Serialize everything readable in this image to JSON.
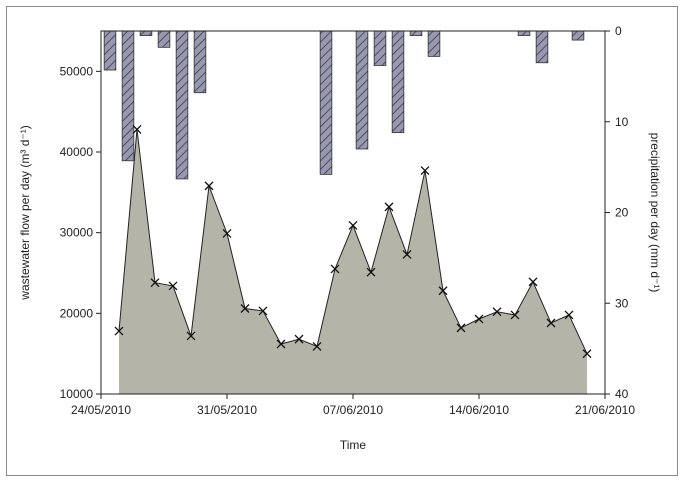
{
  "chart_data": {
    "type": "area",
    "xlabel": "Time",
    "ylabel_left": "wastewater flow per day (m³ d⁻¹)",
    "ylabel_right": "precipitation per day (mm d⁻¹)",
    "x_range": [
      "24/05/2010",
      "21/06/2010"
    ],
    "x_ticks": [
      "24/05/2010",
      "31/05/2010",
      "07/06/2010",
      "14/06/2010",
      "21/06/2010"
    ],
    "y_left_range": [
      10000,
      55000
    ],
    "y_left_ticks": [
      "10000",
      "20000",
      "30000",
      "40000",
      "50000"
    ],
    "y_right_range": [
      0,
      40
    ],
    "y_right_ticks": [
      "0",
      "10",
      "20",
      "30",
      "40"
    ],
    "y_right_inverted": true,
    "grid": false,
    "series": [
      {
        "type": "area",
        "marker": "x",
        "color": "#b4b4a8",
        "x": [
          "2010-05-25",
          "2010-05-26",
          "2010-05-27",
          "2010-05-28",
          "2010-05-29",
          "2010-05-30",
          "2010-05-31",
          "2010-06-01",
          "2010-06-02",
          "2010-06-03",
          "2010-06-04",
          "2010-06-05",
          "2010-06-06",
          "2010-06-07",
          "2010-06-08",
          "2010-06-09",
          "2010-06-10",
          "2010-06-11",
          "2010-06-12",
          "2010-06-13",
          "2010-06-14",
          "2010-06-15",
          "2010-06-16",
          "2010-06-17",
          "2010-06-18",
          "2010-06-19",
          "2010-06-20"
        ],
        "values": [
          17800,
          42800,
          23800,
          23400,
          17200,
          35800,
          29900,
          20600,
          20300,
          16200,
          16800,
          15900,
          25500,
          30900,
          25100,
          33200,
          27300,
          37700,
          22800,
          18200,
          19300,
          20200,
          19800,
          23900,
          18800,
          19800,
          15000
        ]
      },
      {
        "type": "bar",
        "axis": "right",
        "color": "#9898b0",
        "pattern": "hatched",
        "x": [
          "2010-05-24",
          "2010-05-25",
          "2010-05-26",
          "2010-05-27",
          "2010-05-28",
          "2010-05-29",
          "2010-05-30",
          "2010-06-05",
          "2010-06-07",
          "2010-06-08",
          "2010-06-09",
          "2010-06-10",
          "2010-06-11",
          "2010-06-12",
          "2010-06-16",
          "2010-06-17",
          "2010-06-19"
        ],
        "values": [
          4.3,
          14.3,
          0.5,
          1.8,
          16.3,
          6.8,
          0,
          15.8,
          13,
          3.8,
          11.2,
          0.5,
          2.8,
          0,
          0.5,
          3.5,
          1
        ]
      }
    ]
  },
  "colors": {
    "area": "#b4b4a8",
    "bar": "#9898b0",
    "line": "#222222"
  }
}
